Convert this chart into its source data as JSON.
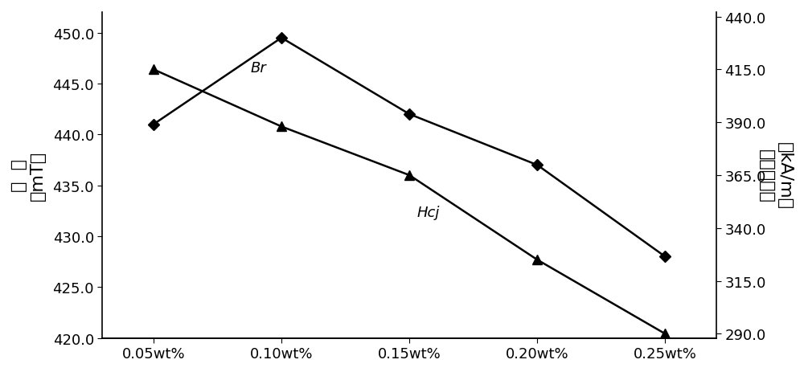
{
  "x_labels": [
    "0.05wt%",
    "0.10wt%",
    "0.15wt%",
    "0.20wt%",
    "0.25wt%"
  ],
  "x_values": [
    0.05,
    0.1,
    0.15,
    0.2,
    0.25
  ],
  "Br_values": [
    441.0,
    449.5,
    442.0,
    437.0,
    428.0
  ],
  "Hcj_values": [
    415.0,
    388.0,
    365.0,
    325.0,
    290.0
  ],
  "left_ylim": [
    420.0,
    452.0
  ],
  "left_yticks": [
    420.0,
    425.0,
    430.0,
    435.0,
    440.0,
    445.0,
    450.0
  ],
  "right_ylim": [
    288.0,
    442.0
  ],
  "right_yticks": [
    290.0,
    315.0,
    340.0,
    365.0,
    390.0,
    415.0,
    440.0
  ],
  "left_ylabel_line1": "剩  磁",
  "left_ylabel_line2": "（mT）",
  "right_ylabel_line1": "（kA/m）",
  "right_ylabel_line2": "内禳矫顽力",
  "Br_label": "Br",
  "Hcj_label": "Hcj",
  "line_color": "#000000",
  "background_color": "#ffffff",
  "font_size_ticks": 13,
  "font_size_labels": 16,
  "font_size_annotations": 13,
  "figsize": [
    10.0,
    4.64
  ],
  "dpi": 100
}
